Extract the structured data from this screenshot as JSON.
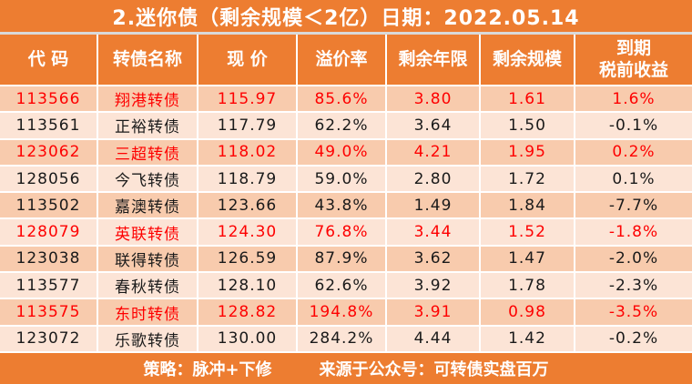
{
  "title": "2.迷你债（剩余规模＜2亿）日期：2022.05.14",
  "footer": {
    "strategy": "策略：脉冲+下修",
    "source": "来源于公众号：可转债实盘百万"
  },
  "colors": {
    "accent_orange": "#ED7D31",
    "row_dark": "#F8CBAD",
    "row_light": "#FCE4D6",
    "highlight_red": "#FE0000",
    "text_dark": "#1A1A1A",
    "header_text": "#FFFFFF"
  },
  "chart_data": {
    "type": "table",
    "title": "2.迷你债（剩余规模＜2亿）日期：2022.05.14",
    "date": "2022.05.14",
    "columns": [
      {
        "key": "code",
        "label": "代 码"
      },
      {
        "key": "name",
        "label": "转债名称"
      },
      {
        "key": "price",
        "label": "现 价"
      },
      {
        "key": "premium",
        "label": "溢价率"
      },
      {
        "key": "years",
        "label": "剩余年限"
      },
      {
        "key": "size",
        "label": "剩余规模"
      },
      {
        "key": "yield",
        "label": "到期\n税前收益"
      }
    ],
    "rows": [
      {
        "code": "113566",
        "name": "翔港转债",
        "price": "115.97",
        "premium": "85.6%",
        "years": "3.80",
        "size": "1.61",
        "yield": "1.6%",
        "red": true
      },
      {
        "code": "113561",
        "name": "正裕转债",
        "price": "117.79",
        "premium": "62.2%",
        "years": "3.64",
        "size": "1.50",
        "yield": "-0.1%",
        "red": false
      },
      {
        "code": "123062",
        "name": "三超转债",
        "price": "118.02",
        "premium": "49.0%",
        "years": "4.21",
        "size": "1.95",
        "yield": "0.2%",
        "red": true
      },
      {
        "code": "128056",
        "name": "今飞转债",
        "price": "118.79",
        "premium": "59.0%",
        "years": "2.80",
        "size": "1.72",
        "yield": "0.1%",
        "red": false
      },
      {
        "code": "113502",
        "name": "嘉澳转债",
        "price": "123.66",
        "premium": "43.8%",
        "years": "1.49",
        "size": "1.84",
        "yield": "-7.7%",
        "red": false
      },
      {
        "code": "128079",
        "name": "英联转债",
        "price": "124.30",
        "premium": "76.8%",
        "years": "3.44",
        "size": "1.52",
        "yield": "-1.8%",
        "red": true
      },
      {
        "code": "123038",
        "name": "联得转债",
        "price": "126.59",
        "premium": "87.9%",
        "years": "3.62",
        "size": "1.47",
        "yield": "-2.0%",
        "red": false
      },
      {
        "code": "113577",
        "name": "春秋转债",
        "price": "128.10",
        "premium": "62.6%",
        "years": "3.92",
        "size": "1.78",
        "yield": "-2.3%",
        "red": false
      },
      {
        "code": "113575",
        "name": "东时转债",
        "price": "128.82",
        "premium": "194.8%",
        "years": "3.91",
        "size": "0.98",
        "yield": "-3.5%",
        "red": true
      },
      {
        "code": "123072",
        "name": "乐歌转债",
        "price": "130.00",
        "premium": "284.2%",
        "years": "4.44",
        "size": "1.42",
        "yield": "-0.2%",
        "red": false
      }
    ]
  }
}
